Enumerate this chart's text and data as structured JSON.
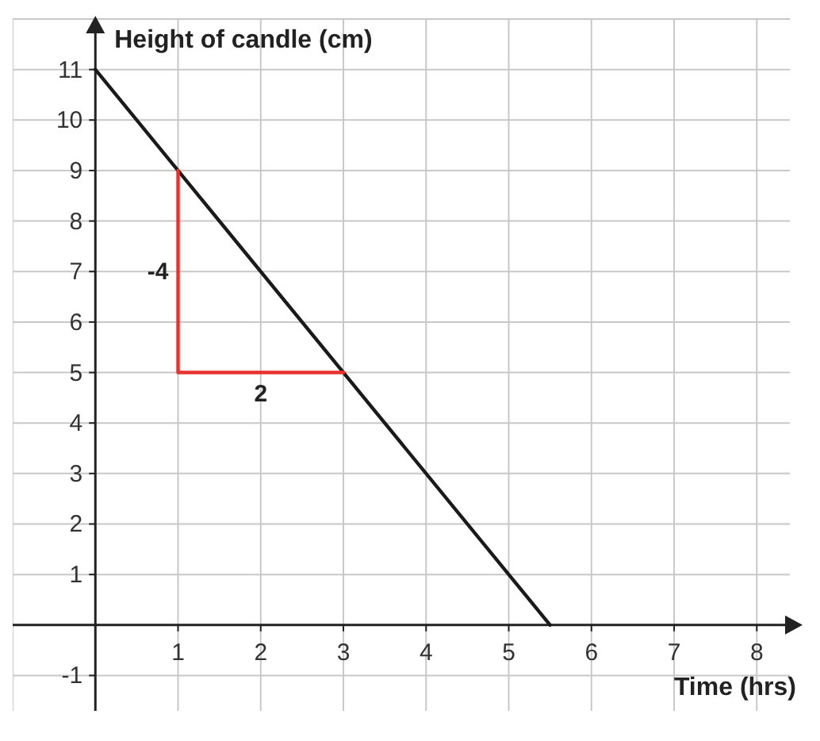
{
  "chart_data": {
    "type": "line",
    "xlabel": "Time (hrs)",
    "ylabel": "Height of candle (cm)",
    "series": [
      {
        "color": "#1a1a1a",
        "x": [
          0,
          5.5
        ],
        "values": [
          11,
          0
        ]
      },
      {
        "color": "#e8322e",
        "x": [
          1,
          1,
          3
        ],
        "values": [
          9,
          5,
          5
        ]
      }
    ],
    "xlim": [
      -1,
      8.4
    ],
    "ylim": [
      -1.7,
      12
    ],
    "xticks": [
      1,
      2,
      3,
      4,
      5,
      6,
      7,
      8
    ],
    "yticks": [
      -1,
      1,
      2,
      3,
      4,
      5,
      6,
      7,
      8,
      9,
      10,
      11
    ],
    "grid": true,
    "marker": "none",
    "line_style": "solid",
    "annotations": [
      {
        "text": "-4",
        "x": 1,
        "y": 7
      },
      {
        "text": "2",
        "x": 2,
        "y": 5
      }
    ]
  }
}
